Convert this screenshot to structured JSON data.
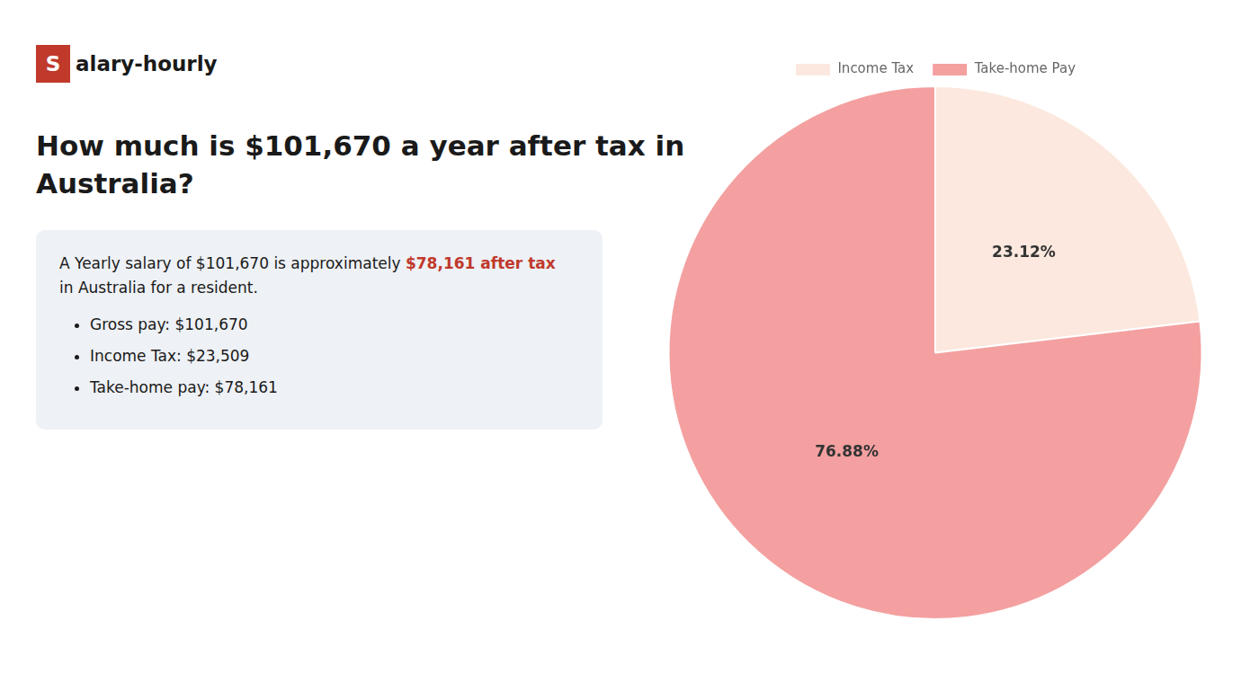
{
  "chart_data": {
    "type": "pie",
    "title": [
      "How much is $101,670 a year after tax in",
      "Australia?"
    ],
    "categories": [
      "Income Tax",
      "Take-home Pay"
    ],
    "values": [
      23.12,
      76.88
    ],
    "value_labels": [
      "23.12%",
      "76.88%"
    ],
    "colors": [
      "#fce8de",
      "#f4a0a0"
    ],
    "data_labels": true,
    "legend": "top",
    "annotations": [
      {
        "text": "S",
        "color": "#c0392b"
      },
      {
        "text": "alary-hourly"
      },
      {
        "text": "A Yearly salary of $101,670 is approximately "
      },
      {
        "text": "$78,161 after tax",
        "color": "#c0392b"
      },
      {
        "text": "in Australia for a resident."
      },
      {
        "text": "Gross pay: $101,670"
      },
      {
        "text": "Income Tax: $23,509"
      },
      {
        "text": "Take-home pay: $78,161"
      }
    ]
  }
}
